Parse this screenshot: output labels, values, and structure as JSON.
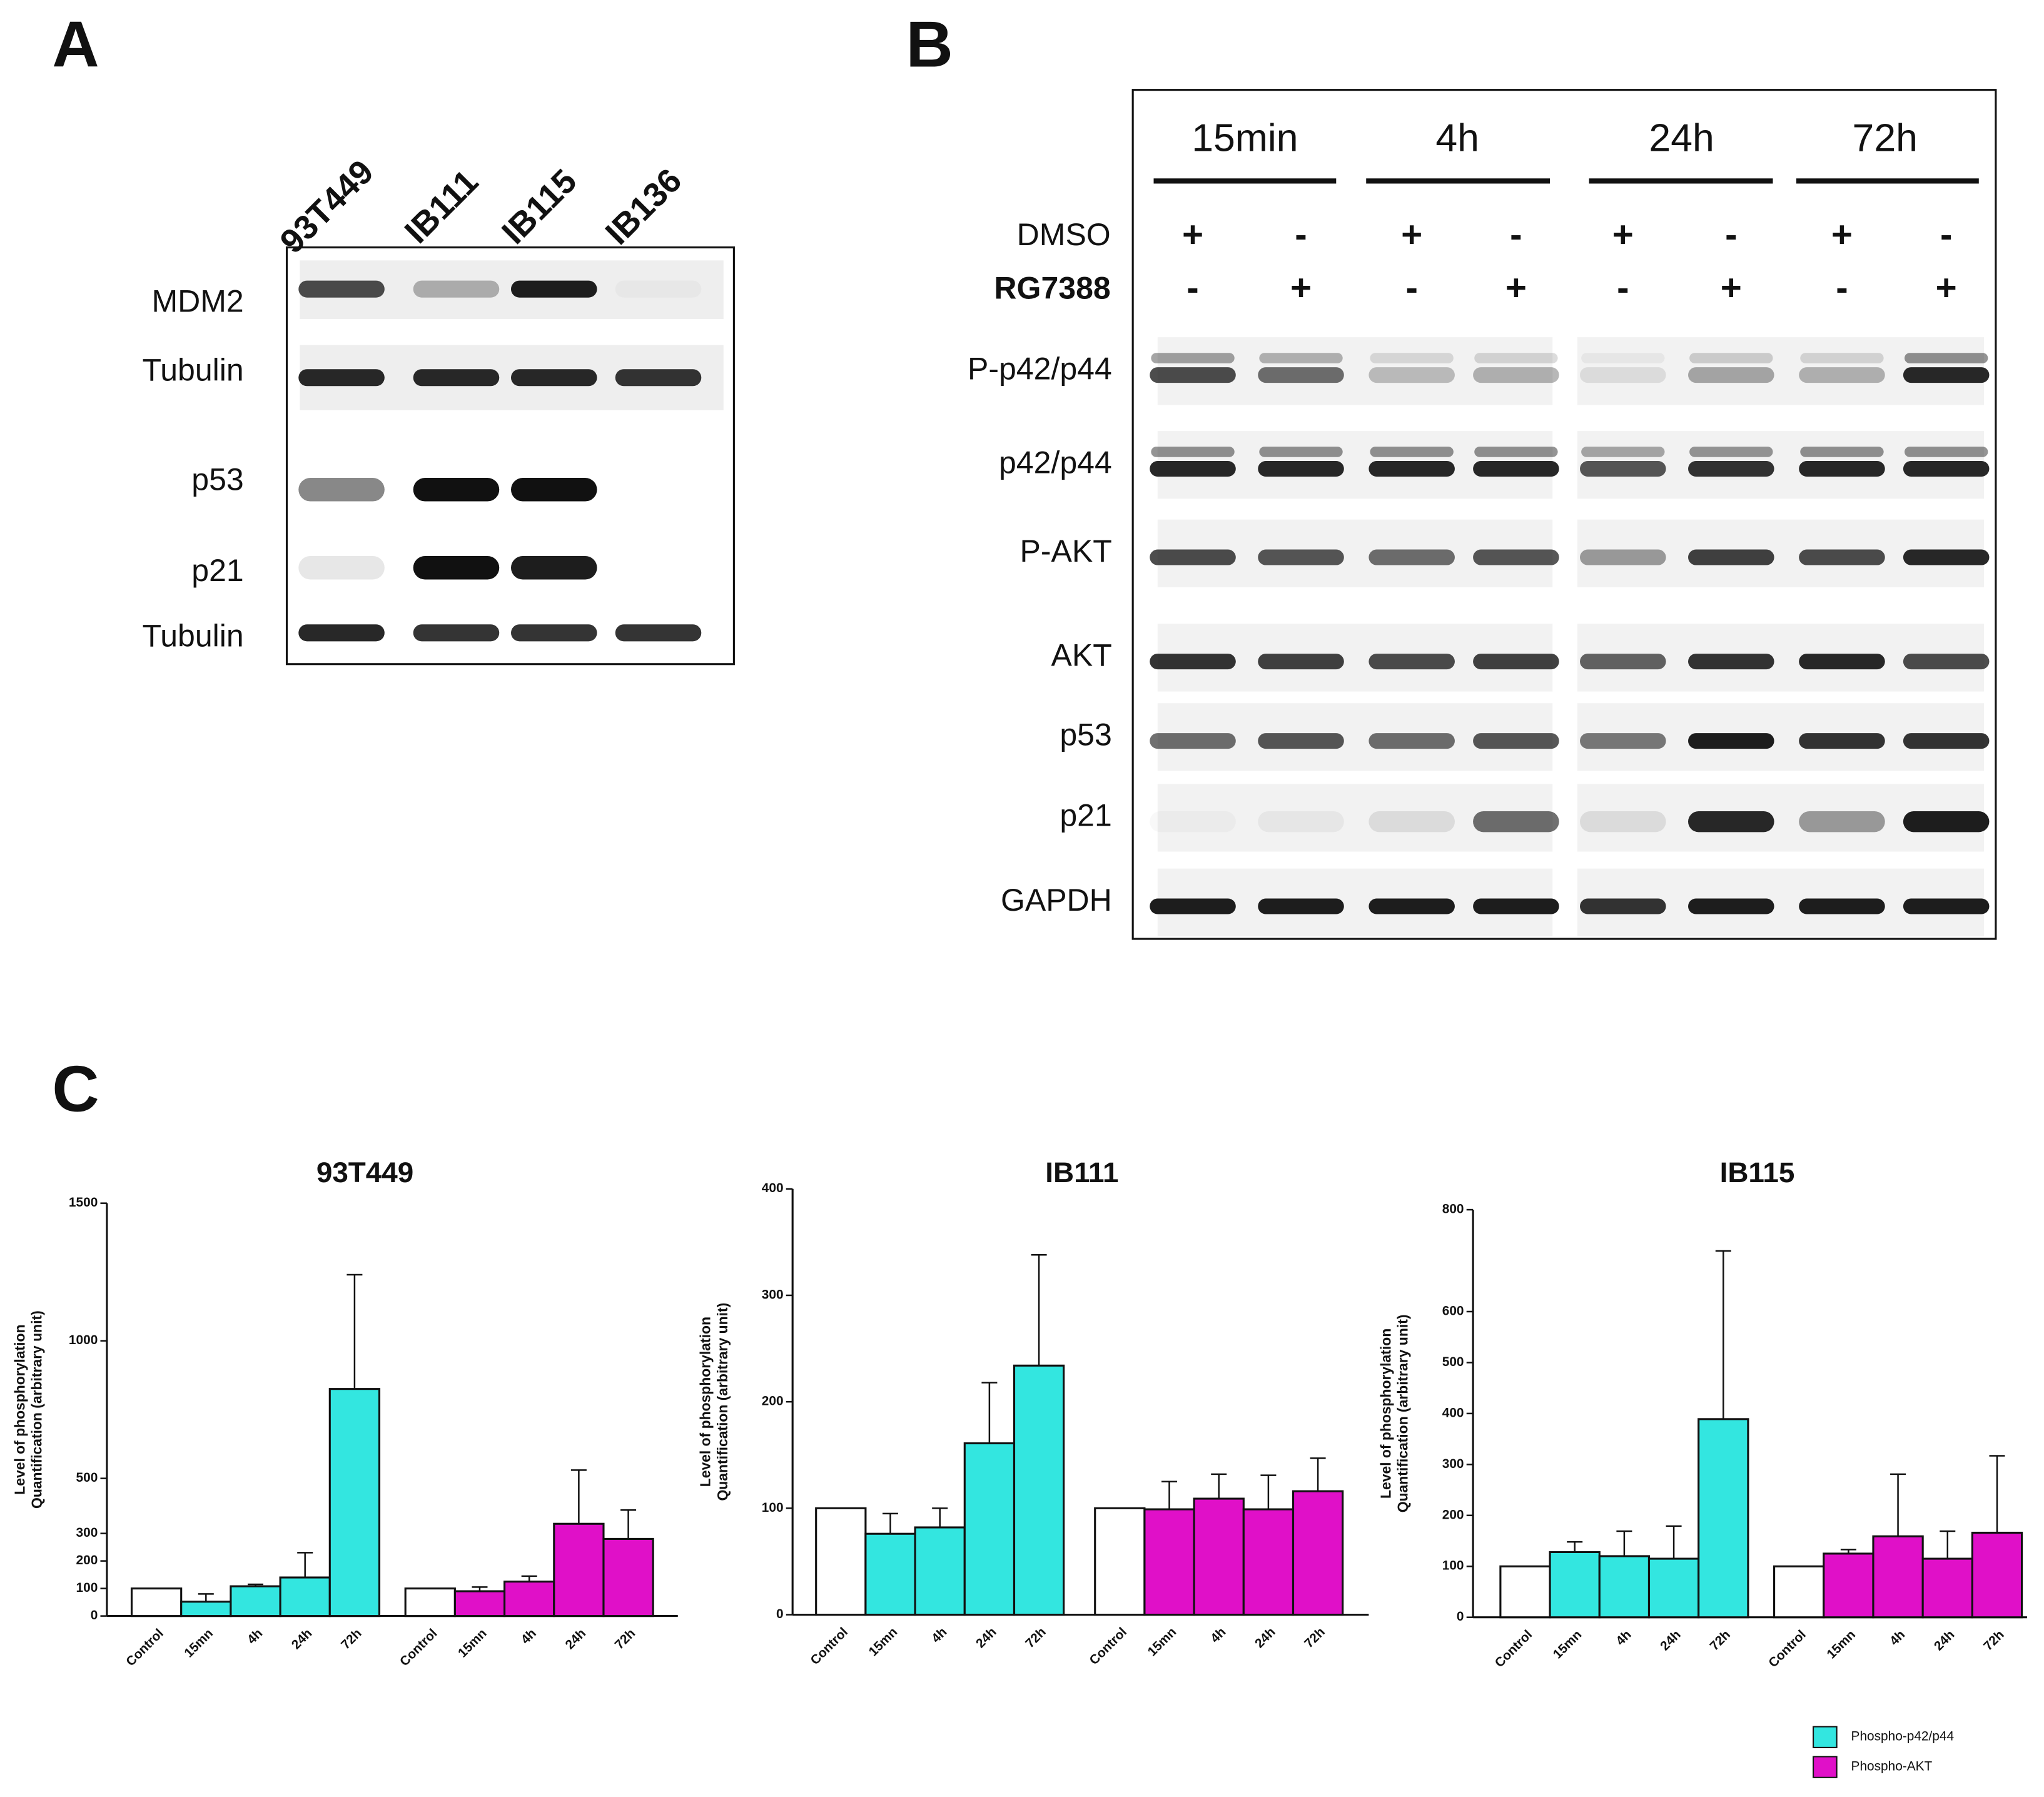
{
  "panels": {
    "a": {
      "label": "A",
      "lanes": [
        "93T449",
        "IB111",
        "IB115",
        "IB136"
      ],
      "rows": [
        "MDM2",
        "Tubulin",
        "p53",
        "p21",
        "Tubulin"
      ]
    },
    "b": {
      "label": "B",
      "timepoints": [
        "15min",
        "4h",
        "24h",
        "72h"
      ],
      "treatments": [
        {
          "name": "DMSO",
          "signs": [
            "+",
            "-",
            "+",
            "-",
            "+",
            "-",
            "+",
            "-"
          ]
        },
        {
          "name": "RG7388",
          "signs": [
            "-",
            "+",
            "-",
            "+",
            "-",
            "+",
            "-",
            "+"
          ]
        }
      ],
      "rows": [
        "P-p42/p44",
        "p42/p44",
        "P-AKT",
        "AKT",
        "p53",
        "p21",
        "GAPDH"
      ]
    },
    "c": {
      "label": "C"
    }
  },
  "chart_data": [
    {
      "type": "bar",
      "title": "93T449",
      "ylabel": [
        "Level of phosphorylation",
        "Quantification (arbitrary unit)"
      ],
      "categories": [
        "Control",
        "15mn",
        "4h",
        "24h",
        "72h",
        "Control",
        "15mn",
        "4h",
        "24h",
        "72h"
      ],
      "ylim": [
        0,
        1500
      ],
      "yticks": [
        0,
        100,
        200,
        300,
        500,
        1000,
        1500
      ],
      "series": [
        {
          "color": "#ffffff",
          "values": [
            100,
            null,
            null,
            null,
            null,
            100,
            null,
            null,
            null,
            null
          ]
        },
        {
          "color": "#33e6e0",
          "values": [
            null,
            52,
            108,
            140,
            825,
            null,
            null,
            null,
            null,
            null
          ],
          "errors": [
            null,
            28,
            7,
            90,
            415,
            null,
            null,
            null,
            null,
            null
          ]
        },
        {
          "color": "#e010c8",
          "values": [
            null,
            null,
            null,
            null,
            null,
            null,
            90,
            125,
            335,
            280
          ],
          "errors": [
            null,
            null,
            null,
            null,
            null,
            null,
            15,
            20,
            195,
            105
          ]
        }
      ]
    },
    {
      "type": "bar",
      "title": "IB111",
      "ylabel": [
        "Level of phosphorylation",
        "Quantification (arbitrary unit)"
      ],
      "categories": [
        "Control",
        "15mn",
        "4h",
        "24h",
        "72h",
        "Control",
        "15mn",
        "4h",
        "24h",
        "72h"
      ],
      "ylim": [
        0,
        400
      ],
      "yticks": [
        0,
        100,
        200,
        300,
        400
      ],
      "series": [
        {
          "color": "#ffffff",
          "values": [
            100,
            null,
            null,
            null,
            null,
            100,
            null,
            null,
            null,
            null
          ]
        },
        {
          "color": "#33e6e0",
          "values": [
            null,
            76,
            82,
            161,
            234,
            null,
            null,
            null,
            null,
            null
          ],
          "errors": [
            null,
            19,
            18,
            57,
            104,
            null,
            null,
            null,
            null,
            null
          ]
        },
        {
          "color": "#e010c8",
          "values": [
            null,
            null,
            null,
            null,
            null,
            null,
            99,
            109,
            99,
            116
          ],
          "errors": [
            null,
            null,
            null,
            null,
            null,
            null,
            26,
            23,
            32,
            31
          ]
        }
      ]
    },
    {
      "type": "bar",
      "title": "IB115",
      "ylabel": [
        "Level of phosphorylation",
        "Quantification (arbitrary unit)"
      ],
      "categories": [
        "Control",
        "15mn",
        "4h",
        "24h",
        "72h",
        "Control",
        "15mn",
        "4h",
        "24h",
        "72h"
      ],
      "ylim": [
        0,
        800
      ],
      "yticks": [
        0,
        100,
        200,
        300,
        400,
        500,
        600,
        800
      ],
      "legend": "bottom right",
      "series": [
        {
          "color": "#ffffff",
          "values": [
            100,
            null,
            null,
            null,
            null,
            100,
            null,
            null,
            null,
            null
          ]
        },
        {
          "name": "Phospho-p42/p44",
          "color": "#33e6e0",
          "values": [
            null,
            128,
            120,
            115,
            389,
            null,
            null,
            null,
            null,
            null
          ],
          "errors": [
            null,
            20,
            49,
            64,
            330,
            null,
            null,
            null,
            null,
            null
          ]
        },
        {
          "name": "Phospho-AKT",
          "color": "#e010c8",
          "values": [
            null,
            null,
            null,
            null,
            null,
            null,
            125,
            159,
            115,
            166
          ],
          "errors": [
            null,
            null,
            null,
            null,
            null,
            null,
            8,
            122,
            54,
            151
          ]
        }
      ]
    }
  ]
}
